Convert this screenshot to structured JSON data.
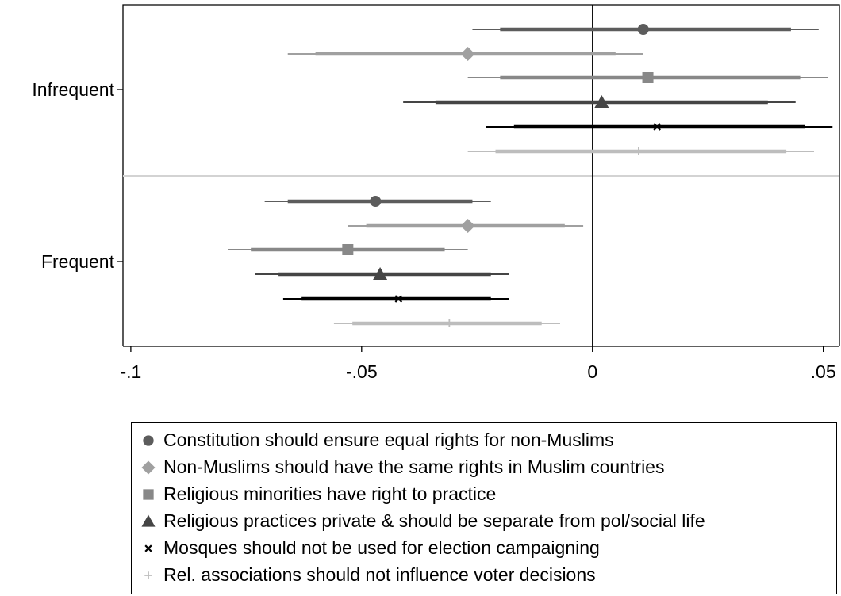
{
  "chart_data": {
    "type": "coefficient-plot",
    "groups": [
      "Infrequent",
      "Frequent"
    ],
    "x_ticks": [
      {
        "value": -0.1,
        "label": "-.1"
      },
      {
        "value": -0.05,
        "label": "-.05"
      },
      {
        "value": 0,
        "label": "0"
      },
      {
        "value": 0.05,
        "label": ".05"
      }
    ],
    "xlim": [
      -0.1017,
      0.0535
    ],
    "reference_line": 0,
    "grid": false,
    "legend_position": "bottom",
    "series": [
      {
        "name": "Constitution should ensure equal rights for non-Muslims",
        "marker": "circle",
        "color": "#5c5c5c",
        "values": [
          {
            "group": "Infrequent",
            "est": 0.011,
            "ci90": [
              -0.02,
              0.043
            ],
            "ci95": [
              -0.026,
              0.049
            ]
          },
          {
            "group": "Frequent",
            "est": -0.047,
            "ci90": [
              -0.066,
              -0.026
            ],
            "ci95": [
              -0.071,
              -0.022
            ]
          }
        ]
      },
      {
        "name": "Non-Muslims should have the same rights in Muslim countries",
        "marker": "diamond",
        "color": "#a0a0a0",
        "values": [
          {
            "group": "Infrequent",
            "est": -0.027,
            "ci90": [
              -0.06,
              0.005
            ],
            "ci95": [
              -0.066,
              0.011
            ]
          },
          {
            "group": "Frequent",
            "est": -0.027,
            "ci90": [
              -0.049,
              -0.006
            ],
            "ci95": [
              -0.053,
              -0.002
            ]
          }
        ]
      },
      {
        "name": "Religious minorities have right to practice",
        "marker": "square",
        "color": "#888888",
        "values": [
          {
            "group": "Infrequent",
            "est": 0.012,
            "ci90": [
              -0.02,
              0.045
            ],
            "ci95": [
              -0.027,
              0.051
            ]
          },
          {
            "group": "Frequent",
            "est": -0.053,
            "ci90": [
              -0.074,
              -0.032
            ],
            "ci95": [
              -0.079,
              -0.027
            ]
          }
        ]
      },
      {
        "name": "Religious practices private & should be separate from pol/social life",
        "marker": "triangle",
        "color": "#454545",
        "values": [
          {
            "group": "Infrequent",
            "est": 0.002,
            "ci90": [
              -0.034,
              0.038
            ],
            "ci95": [
              -0.041,
              0.044
            ]
          },
          {
            "group": "Frequent",
            "est": -0.046,
            "ci90": [
              -0.068,
              -0.022
            ],
            "ci95": [
              -0.073,
              -0.018
            ]
          }
        ]
      },
      {
        "name": "Mosques should not be used for election campaigning",
        "marker": "x",
        "color": "#000000",
        "values": [
          {
            "group": "Infrequent",
            "est": 0.014,
            "ci90": [
              -0.017,
              0.046
            ],
            "ci95": [
              -0.023,
              0.052
            ]
          },
          {
            "group": "Frequent",
            "est": -0.042,
            "ci90": [
              -0.063,
              -0.022
            ],
            "ci95": [
              -0.067,
              -0.018
            ]
          }
        ]
      },
      {
        "name": "Rel. associations should not influence voter decisions",
        "marker": "plus",
        "color": "#bdbdbd",
        "values": [
          {
            "group": "Infrequent",
            "est": 0.01,
            "ci90": [
              -0.021,
              0.042
            ],
            "ci95": [
              -0.027,
              0.048
            ]
          },
          {
            "group": "Frequent",
            "est": -0.031,
            "ci90": [
              -0.052,
              -0.011
            ],
            "ci95": [
              -0.056,
              -0.007
            ]
          }
        ]
      }
    ]
  }
}
